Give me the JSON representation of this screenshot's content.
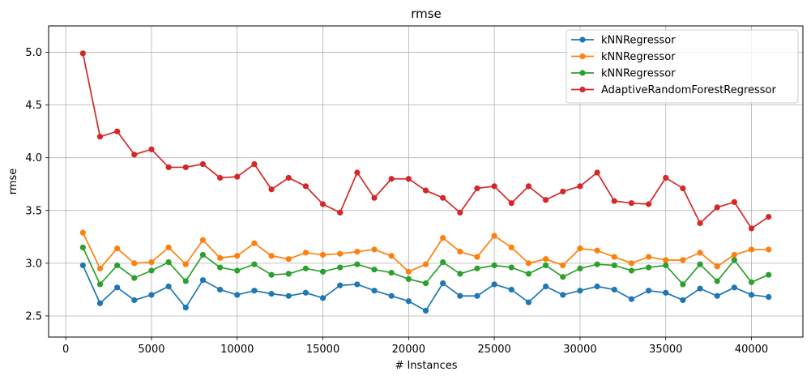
{
  "chart_data": {
    "type": "line",
    "title": "rmse",
    "xlabel": "# Instances",
    "ylabel": "rmse",
    "xlim": [
      -1000,
      43000
    ],
    "ylim": [
      2.3,
      5.25
    ],
    "xticks": [
      0,
      5000,
      10000,
      15000,
      20000,
      25000,
      30000,
      35000,
      40000
    ],
    "yticks": [
      2.5,
      3.0,
      3.5,
      4.0,
      4.5,
      5.0
    ],
    "xtick_labels": [
      "0",
      "5000",
      "10000",
      "15000",
      "20000",
      "25000",
      "30000",
      "35000",
      "40000"
    ],
    "ytick_labels": [
      "2.5",
      "3.0",
      "3.5",
      "4.0",
      "4.5",
      "5.0"
    ],
    "grid": true,
    "legend_position": "top-right",
    "x": [
      1000,
      2000,
      3000,
      4000,
      5000,
      6000,
      7000,
      8000,
      9000,
      10000,
      11000,
      12000,
      13000,
      14000,
      15000,
      16000,
      17000,
      18000,
      19000,
      20000,
      21000,
      22000,
      23000,
      24000,
      25000,
      26000,
      27000,
      28000,
      29000,
      30000,
      31000,
      32000,
      33000,
      34000,
      35000,
      36000,
      37000,
      38000,
      39000,
      40000,
      41000
    ],
    "series": [
      {
        "name": "kNNRegressor",
        "color": "#1f77b4",
        "values": [
          2.98,
          2.62,
          2.77,
          2.65,
          2.7,
          2.78,
          2.58,
          2.84,
          2.75,
          2.7,
          2.74,
          2.71,
          2.69,
          2.72,
          2.67,
          2.79,
          2.8,
          2.74,
          2.69,
          2.64,
          2.55,
          2.81,
          2.69,
          2.69,
          2.8,
          2.75,
          2.63,
          2.78,
          2.7,
          2.74,
          2.78,
          2.75,
          2.66,
          2.74,
          2.72,
          2.65,
          2.76,
          2.69,
          2.77,
          2.7,
          2.68
        ]
      },
      {
        "name": "kNNRegressor",
        "color": "#ff7f0e",
        "values": [
          3.29,
          2.95,
          3.14,
          3.0,
          3.01,
          3.15,
          2.99,
          3.22,
          3.05,
          3.07,
          3.19,
          3.07,
          3.04,
          3.1,
          3.08,
          3.09,
          3.11,
          3.13,
          3.07,
          2.92,
          2.99,
          3.24,
          3.11,
          3.06,
          3.26,
          3.15,
          3.0,
          3.04,
          2.98,
          3.14,
          3.12,
          3.06,
          3.0,
          3.06,
          3.03,
          3.03,
          3.1,
          2.97,
          3.08,
          3.13,
          3.13
        ]
      },
      {
        "name": "kNNRegressor",
        "color": "#2ca02c",
        "values": [
          3.15,
          2.8,
          2.98,
          2.86,
          2.93,
          3.01,
          2.83,
          3.08,
          2.96,
          2.93,
          2.99,
          2.89,
          2.9,
          2.95,
          2.92,
          2.96,
          2.99,
          2.94,
          2.91,
          2.85,
          2.81,
          3.01,
          2.9,
          2.95,
          2.98,
          2.96,
          2.9,
          2.98,
          2.87,
          2.95,
          2.99,
          2.98,
          2.93,
          2.96,
          2.98,
          2.8,
          2.99,
          2.83,
          3.03,
          2.82,
          2.89
        ]
      },
      {
        "name": "AdaptiveRandomForestRegressor",
        "color": "#d62728",
        "values": [
          4.99,
          4.2,
          4.25,
          4.03,
          4.08,
          3.91,
          3.91,
          3.94,
          3.81,
          3.82,
          3.94,
          3.7,
          3.81,
          3.73,
          3.56,
          3.48,
          3.86,
          3.62,
          3.8,
          3.8,
          3.69,
          3.62,
          3.48,
          3.71,
          3.73,
          3.57,
          3.73,
          3.6,
          3.68,
          3.73,
          3.86,
          3.59,
          3.57,
          3.56,
          3.81,
          3.71,
          3.38,
          3.53,
          3.58,
          3.33,
          3.44
        ]
      }
    ]
  }
}
